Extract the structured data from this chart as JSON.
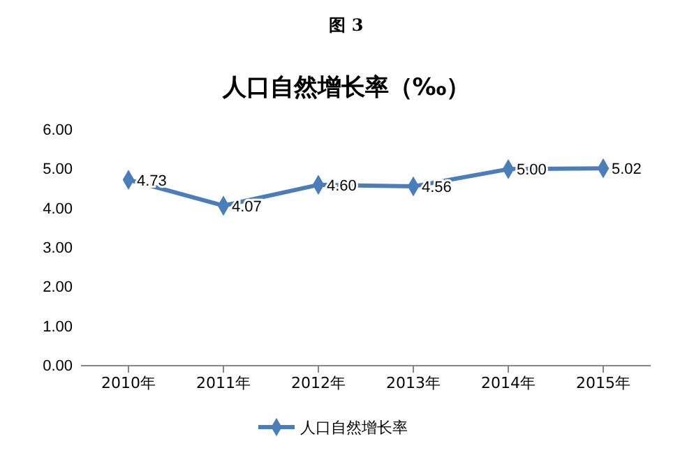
{
  "chart_data": {
    "type": "line",
    "title": "人口自然增长率（‰）",
    "annotations": [
      "图 3"
    ],
    "categories": [
      "2010年",
      "2011年",
      "2012年",
      "2013年",
      "2014年",
      "2015年"
    ],
    "series": [
      {
        "name": "人口自然增长率",
        "color": "#4a7ebb",
        "values": [
          4.73,
          4.07,
          4.6,
          4.56,
          5.0,
          5.02
        ],
        "value_labels": [
          "4.73",
          "4.07",
          "4.60",
          "4.56",
          "5.00",
          "5.02"
        ]
      }
    ],
    "ylim": [
      0,
      6
    ],
    "yticks": [
      {
        "value": 0,
        "label": "0.00"
      },
      {
        "value": 1,
        "label": "1.00"
      },
      {
        "value": 2,
        "label": "2.00"
      },
      {
        "value": 3,
        "label": "3.00"
      },
      {
        "value": 4,
        "label": "4.00"
      },
      {
        "value": 5,
        "label": "5.00"
      },
      {
        "value": 6,
        "label": "6.00"
      }
    ],
    "grid": false,
    "legend": "bottom",
    "marker": "diamond",
    "line_style": "solid"
  }
}
